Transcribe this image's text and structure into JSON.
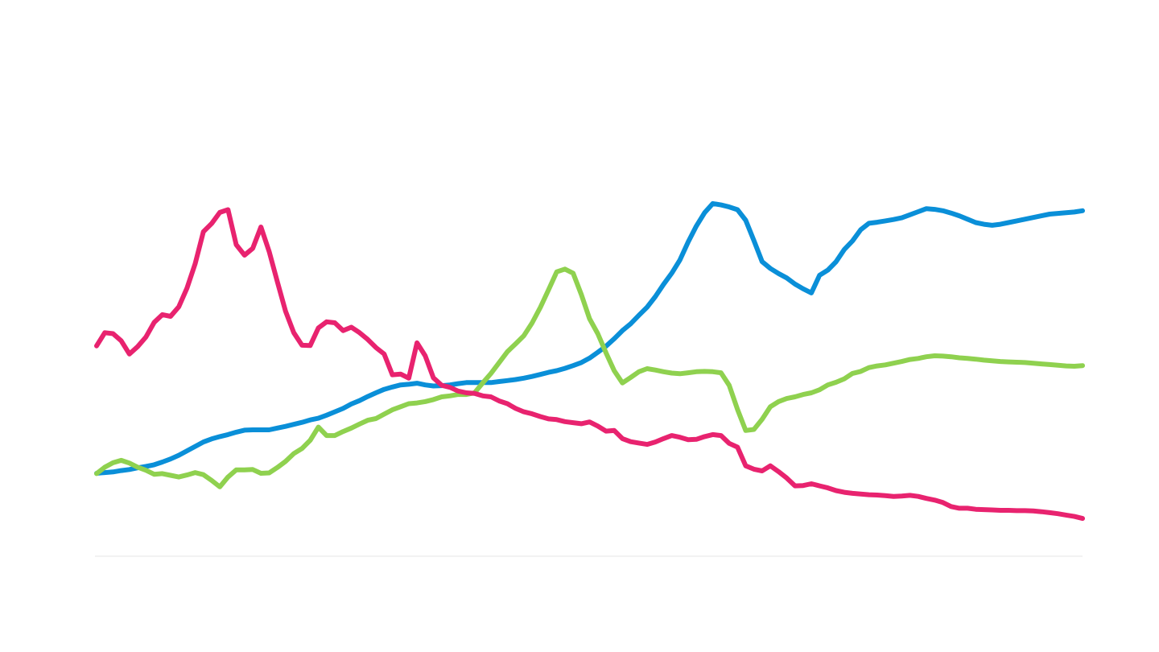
{
  "chart_data": {
    "type": "line",
    "title": "",
    "xlabel": "",
    "ylabel": "",
    "grid": false,
    "legend": "none",
    "x": [
      0,
      1,
      2,
      3,
      4,
      5,
      6,
      7,
      8,
      9,
      10,
      11,
      12,
      13,
      14,
      15,
      16,
      17,
      18,
      19,
      20,
      21,
      22,
      23,
      24,
      25,
      26,
      27,
      28,
      29,
      30,
      31,
      32,
      33,
      34,
      35,
      36,
      37,
      38,
      39,
      40,
      41,
      42,
      43,
      44,
      45,
      46,
      47,
      48,
      49,
      50,
      51,
      52,
      53,
      54,
      55,
      56,
      57,
      58,
      59,
      60,
      61,
      62,
      63,
      64,
      65,
      66,
      67,
      68,
      69,
      70,
      71,
      72,
      73,
      74,
      75,
      76,
      77,
      78,
      79,
      80,
      81,
      82,
      83,
      84,
      85,
      86,
      87,
      88,
      89,
      90,
      91,
      92,
      93,
      94,
      95,
      96,
      97,
      98,
      99,
      100,
      101,
      102,
      103,
      104,
      105,
      106,
      107,
      108,
      109,
      110,
      111,
      112,
      113,
      114,
      115,
      116,
      117,
      118,
      119,
      120
    ],
    "xlim": [
      0,
      120
    ],
    "ylim": [
      0,
      100
    ],
    "series": [
      {
        "color": "#0a8fd8",
        "values": [
          14.7,
          14.9,
          15.1,
          15.5,
          15.8,
          16.3,
          16.7,
          17.2,
          18.0,
          18.9,
          20.0,
          21.3,
          22.6,
          23.9,
          24.8,
          25.5,
          26.1,
          26.8,
          27.4,
          27.5,
          27.5,
          27.5,
          28.0,
          28.5,
          29.1,
          29.7,
          30.4,
          30.9,
          31.8,
          32.8,
          33.8,
          35.1,
          36.1,
          37.3,
          38.4,
          39.4,
          40.1,
          40.7,
          40.9,
          41.2,
          40.7,
          40.4,
          40.5,
          40.7,
          41.1,
          41.4,
          41.4,
          41.4,
          41.4,
          41.7,
          42.0,
          42.3,
          42.7,
          43.2,
          43.8,
          44.4,
          44.9,
          45.6,
          46.4,
          47.3,
          48.6,
          50.3,
          52.1,
          54.3,
          56.7,
          58.7,
          61.2,
          63.6,
          66.7,
          70.3,
          73.6,
          77.5,
          82.8,
          87.5,
          91.4,
          94.1,
          93.7,
          93.1,
          92.3,
          89.2,
          83.2,
          77.0,
          75.0,
          73.5,
          72.2,
          70.4,
          69.0,
          67.8,
          73.0,
          74.5,
          77.0,
          80.6,
          83.1,
          86.4,
          88.3,
          88.6,
          89.0,
          89.4,
          89.9,
          90.8,
          91.7,
          92.6,
          92.4,
          92.0,
          91.3,
          90.5,
          89.5,
          88.5,
          88.0,
          87.7,
          88.0,
          88.5,
          89.0,
          89.5,
          90.0,
          90.5,
          91.0,
          91.2,
          91.4,
          91.6,
          92.0
        ]
      },
      {
        "color": "#8fd14f",
        "values": [
          14.6,
          16.5,
          17.8,
          18.5,
          17.7,
          16.5,
          15.6,
          14.4,
          14.6,
          14.1,
          13.6,
          14.2,
          14.9,
          14.3,
          12.6,
          10.7,
          13.6,
          15.7,
          15.7,
          15.8,
          14.7,
          14.8,
          16.4,
          18.2,
          20.5,
          22.0,
          24.4,
          28.3,
          25.8,
          25.8,
          27.0,
          28.0,
          29.2,
          30.3,
          30.8,
          32.1,
          33.4,
          34.3,
          35.2,
          35.4,
          35.8,
          36.4,
          37.2,
          37.5,
          37.9,
          37.9,
          38.4,
          41.3,
          44.1,
          47.3,
          50.5,
          52.8,
          55.2,
          58.9,
          63.5,
          68.7,
          74.0,
          74.8,
          73.6,
          67.3,
          60.2,
          55.8,
          50.2,
          44.9,
          41.3,
          42.9,
          44.6,
          45.5,
          45.1,
          44.6,
          44.2,
          44.0,
          44.3,
          44.6,
          44.7,
          44.6,
          44.3,
          40.6,
          33.5,
          27.3,
          27.6,
          30.6,
          34.3,
          35.8,
          36.7,
          37.2,
          37.9,
          38.4,
          39.3,
          40.7,
          41.5,
          42.5,
          44.1,
          44.7,
          45.8,
          46.3,
          46.6,
          47.1,
          47.6,
          48.2,
          48.5,
          49.0,
          49.3,
          49.2,
          49.0,
          48.7,
          48.5,
          48.3,
          48.0,
          47.8,
          47.6,
          47.5,
          47.4,
          47.3,
          47.1,
          46.9,
          46.7,
          46.5,
          46.3,
          46.2,
          46.4
        ]
      },
      {
        "color": "#e8236f",
        "values": [
          52.2,
          56.1,
          55.8,
          53.7,
          49.8,
          52.0,
          54.8,
          59.1,
          61.4,
          60.9,
          63.7,
          69.2,
          76.4,
          85.8,
          88.2,
          91.5,
          92.3,
          82.0,
          78.9,
          80.9,
          87.2,
          80.0,
          71.1,
          62.4,
          56.1,
          52.4,
          52.3,
          57.5,
          59.3,
          59.0,
          56.7,
          57.7,
          56.1,
          54.1,
          51.7,
          49.8,
          43.7,
          43.9,
          42.7,
          53.1,
          49.3,
          42.8,
          40.6,
          40.0,
          38.9,
          38.4,
          38.2,
          37.5,
          37.2,
          36.0,
          35.2,
          33.8,
          32.8,
          32.2,
          31.4,
          30.7,
          30.5,
          29.9,
          29.6,
          29.3,
          29.8,
          28.6,
          27.1,
          27.3,
          24.9,
          24.0,
          23.6,
          23.2,
          23.9,
          24.9,
          25.8,
          25.3,
          24.6,
          24.7,
          25.5,
          26.1,
          25.8,
          23.5,
          22.4,
          16.9,
          15.9,
          15.4,
          16.9,
          15.2,
          13.3,
          11.0,
          11.1,
          11.6,
          11.0,
          10.4,
          9.6,
          9.1,
          8.8,
          8.6,
          8.4,
          8.3,
          8.1,
          7.9,
          8.0,
          8.2,
          7.9,
          7.3,
          6.8,
          6.1,
          4.9,
          4.4,
          4.4,
          4.1,
          4.0,
          3.9,
          3.8,
          3.8,
          3.7,
          3.7,
          3.6,
          3.4,
          3.1,
          2.8,
          2.4,
          2.0,
          1.4
        ]
      }
    ]
  }
}
